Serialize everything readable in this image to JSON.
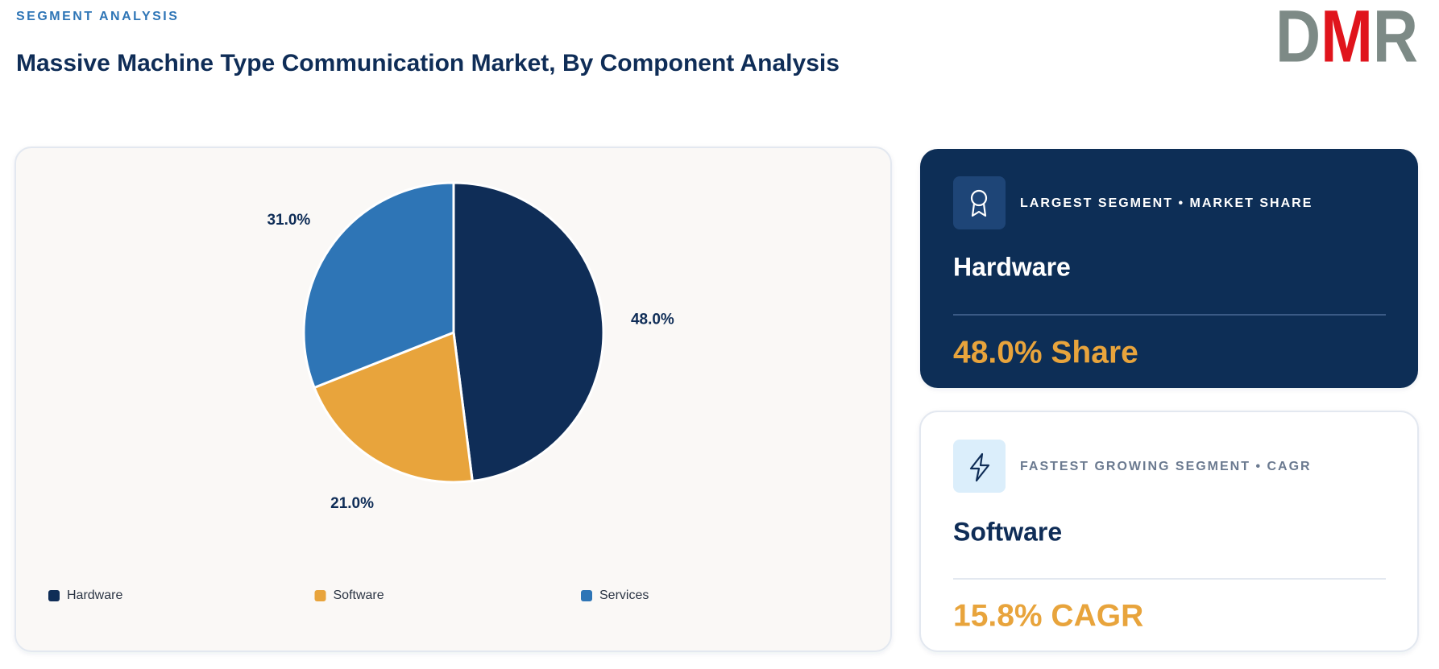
{
  "header": {
    "eyebrow": "SEGMENT ANALYSIS",
    "title": "Massive Machine Type Communication Market, By Component Analysis",
    "logo": "DMR"
  },
  "chart_data": {
    "type": "pie",
    "categories": [
      "Hardware",
      "Software",
      "Services"
    ],
    "values": [
      48,
      21,
      31
    ],
    "value_labels": [
      "48.0%",
      "21.0%",
      "31.0%"
    ],
    "colors": [
      "#0f2d57",
      "#e8a43c",
      "#2e75b6"
    ],
    "legend": "bottom"
  },
  "cards": [
    {
      "label": "LARGEST SEGMENT • MARKET SHARE",
      "segment": "Hardware",
      "value": "48.0% Share"
    },
    {
      "label": "FASTEST GROWING SEGMENT • CAGR",
      "segment": "Software",
      "value": "15.8% CAGR"
    }
  ]
}
